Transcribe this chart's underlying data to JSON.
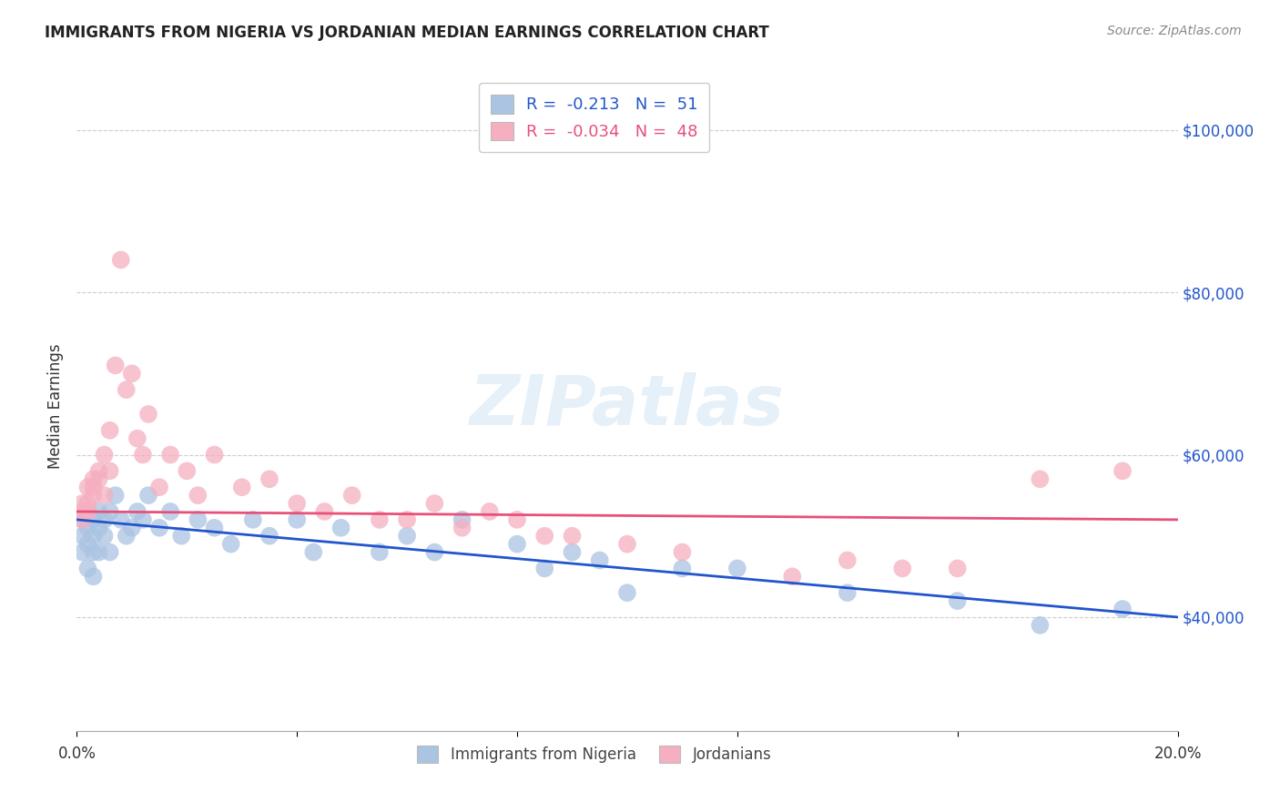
{
  "title": "IMMIGRANTS FROM NIGERIA VS JORDANIAN MEDIAN EARNINGS CORRELATION CHART",
  "source": "Source: ZipAtlas.com",
  "ylabel": "Median Earnings",
  "xlim": [
    0.0,
    0.2
  ],
  "ylim": [
    26000,
    106000
  ],
  "xticks": [
    0.0,
    0.04,
    0.08,
    0.12,
    0.16,
    0.2
  ],
  "xtick_labels": [
    "0.0%",
    "",
    "",
    "",
    "",
    "20.0%"
  ],
  "ytick_labels_right": [
    "$40,000",
    "$60,000",
    "$80,000",
    "$100,000"
  ],
  "ytick_values_right": [
    40000,
    60000,
    80000,
    100000
  ],
  "blue_color": "#aac4e2",
  "pink_color": "#f5afc0",
  "blue_line_color": "#2255cc",
  "pink_line_color": "#e8507a",
  "legend_blue_label": "R =  -0.213   N =  51",
  "legend_pink_label": "R =  -0.034   N =  48",
  "legend_bottom_blue": "Immigrants from Nigeria",
  "legend_bottom_pink": "Jordanians",
  "watermark": "ZIPatlas",
  "nigeria_x": [
    0.001,
    0.001,
    0.001,
    0.002,
    0.002,
    0.002,
    0.002,
    0.003,
    0.003,
    0.003,
    0.003,
    0.004,
    0.004,
    0.004,
    0.005,
    0.005,
    0.006,
    0.006,
    0.007,
    0.008,
    0.009,
    0.01,
    0.011,
    0.012,
    0.013,
    0.015,
    0.017,
    0.019,
    0.022,
    0.025,
    0.028,
    0.032,
    0.035,
    0.04,
    0.043,
    0.048,
    0.055,
    0.06,
    0.065,
    0.07,
    0.08,
    0.085,
    0.09,
    0.095,
    0.1,
    0.11,
    0.12,
    0.14,
    0.16,
    0.175,
    0.19
  ],
  "nigeria_y": [
    52000,
    50000,
    48000,
    53000,
    51000,
    49000,
    46000,
    52000,
    50000,
    48000,
    45000,
    53000,
    51000,
    48000,
    52000,
    50000,
    53000,
    48000,
    55000,
    52000,
    50000,
    51000,
    53000,
    52000,
    55000,
    51000,
    53000,
    50000,
    52000,
    51000,
    49000,
    52000,
    50000,
    52000,
    48000,
    51000,
    48000,
    50000,
    48000,
    52000,
    49000,
    46000,
    48000,
    47000,
    43000,
    46000,
    46000,
    43000,
    42000,
    39000,
    41000
  ],
  "jordan_x": [
    0.001,
    0.001,
    0.001,
    0.002,
    0.002,
    0.002,
    0.003,
    0.003,
    0.003,
    0.004,
    0.004,
    0.005,
    0.005,
    0.006,
    0.006,
    0.007,
    0.008,
    0.009,
    0.01,
    0.011,
    0.012,
    0.013,
    0.015,
    0.017,
    0.02,
    0.022,
    0.025,
    0.03,
    0.035,
    0.04,
    0.045,
    0.05,
    0.055,
    0.06,
    0.065,
    0.07,
    0.075,
    0.08,
    0.085,
    0.09,
    0.1,
    0.11,
    0.13,
    0.14,
    0.15,
    0.16,
    0.175,
    0.19
  ],
  "jordan_y": [
    53000,
    54000,
    52000,
    56000,
    54000,
    53000,
    57000,
    56000,
    55000,
    58000,
    57000,
    60000,
    55000,
    63000,
    58000,
    71000,
    84000,
    68000,
    70000,
    62000,
    60000,
    65000,
    56000,
    60000,
    58000,
    55000,
    60000,
    56000,
    57000,
    54000,
    53000,
    55000,
    52000,
    52000,
    54000,
    51000,
    53000,
    52000,
    50000,
    50000,
    49000,
    48000,
    45000,
    47000,
    46000,
    46000,
    57000,
    58000
  ]
}
